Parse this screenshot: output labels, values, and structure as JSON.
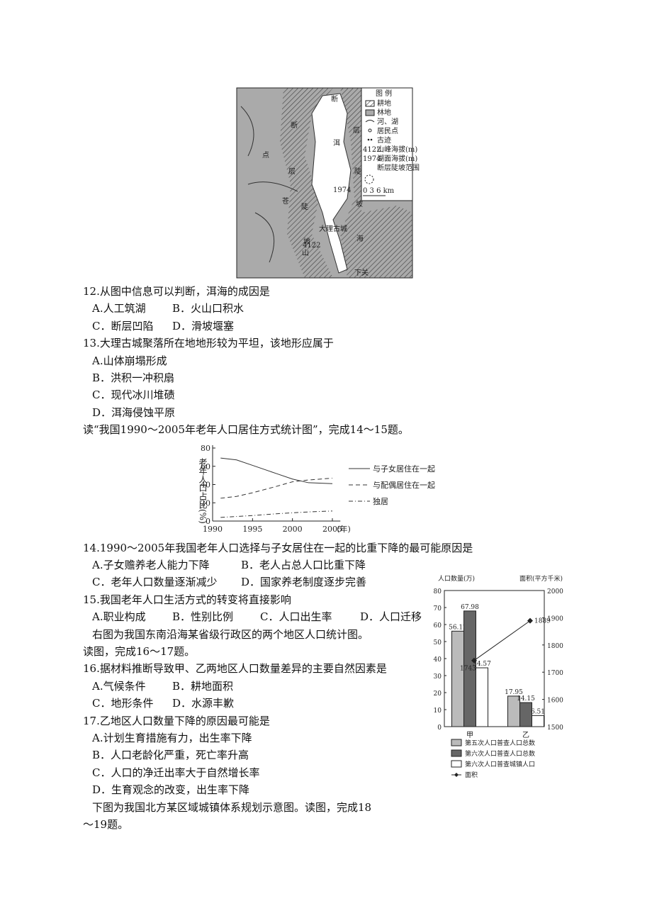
{
  "map": {
    "legend_title": "图  例",
    "legend": [
      "耕地",
      "林地",
      "河、湖",
      "居民点",
      "古迹",
      "山峰海拔(m)",
      "湖面海拔(m)",
      "断层陡坡范围"
    ],
    "peak_code": "4122",
    "lake_code": "1974",
    "scale": "0  3  6 km",
    "labels": {
      "left_fault": [
        "断",
        "层",
        "陡",
        "坡"
      ],
      "right_fault": [
        "断",
        "层",
        "陡",
        "坡"
      ],
      "mountain": [
        "点",
        "苍",
        "山"
      ],
      "lake": [
        "洱",
        "海"
      ],
      "city": "大理古城",
      "peak": "4122",
      "lake_level": "1974",
      "town": "下关"
    }
  },
  "questions": [
    {
      "stem": "12.从图中信息可以判断，洱海的成因是",
      "options": [
        [
          "A.人工筑湖",
          "B．火山口积水"
        ],
        [
          "C．断层凹陷",
          "D．滑坡堰塞"
        ]
      ]
    },
    {
      "stem": "13.大理古城聚落所在地地形较为平坦，该地形应属于",
      "options": [
        [
          "A.山体崩塌形成"
        ],
        [
          "B．洪积一冲积扇"
        ],
        [
          "C．现代冰川堆碛"
        ],
        [
          "D．洱海侵蚀平原"
        ]
      ]
    },
    {
      "intro": [
        "读“我国1990～2005年老年人口居住方式统计图”，完成14～15题。"
      ]
    },
    {
      "stem": "14.1990～2005年我国老年人口选择与子女居住在一起的比重下降的最可能原因是",
      "options": [
        [
          "A.子女赡养老人能力下降",
          "B．老人占总人口比重下降"
        ],
        [
          "C．老年人口数量逐渐减少",
          "D．国家养老制度逐步完善"
        ]
      ]
    },
    {
      "stem": "15.我国老年人口生活方式的转变将直接影响",
      "options": [
        [
          "A.职业构成",
          "B．性别比例",
          "C．人口出生率",
          "D．人口迁移"
        ]
      ]
    },
    {
      "intro": [
        "右图为我国东南沿海某省级行政区的两个地区人口统计图。",
        "读图，完成16～17题。"
      ]
    },
    {
      "stem": "16.据材料推断导致甲、乙两地区人口数量差异的主要自然因素是",
      "options": [
        [
          "A.气候条件",
          "B．耕地面积"
        ],
        [
          "C．地形条件",
          "D．水源丰歉"
        ]
      ]
    },
    {
      "stem": "17.乙地区人口数量下降的原因最可能是",
      "options": [
        [
          "A.计划生育措施有力，出生率下降"
        ],
        [
          "B．人口老龄化严重，死亡率升高"
        ],
        [
          "C．人口的净迁出率大于自然增长率"
        ],
        [
          "D．生育观念的改变，出生率下降"
        ]
      ]
    },
    {
      "intro": [
        "下图为我国北方某区域城镇体系规划示意图。读图，完成18",
        "～19题。"
      ]
    }
  ],
  "chart_data": [
    {
      "type": "line",
      "y_label": "老年人口占比(%)",
      "x_unit": "(年)",
      "x": [
        1991,
        1993,
        1995,
        1998,
        2000,
        2002,
        2005
      ],
      "xlim": [
        1990,
        2006
      ],
      "xticks": [
        1990,
        1995,
        2000,
        2005
      ],
      "ylim": [
        0,
        80
      ],
      "yticks": [
        0,
        20,
        40,
        60,
        80
      ],
      "series": [
        {
          "name": "与子女居住在一起",
          "color": "#333",
          "dash": "solid",
          "values": [
            69,
            67,
            61,
            52,
            46,
            42,
            41
          ]
        },
        {
          "name": "与配偶居住在一起",
          "color": "#333",
          "dash": "dashed",
          "values": [
            25,
            27,
            31,
            38,
            43,
            45,
            47
          ]
        },
        {
          "name": "独居",
          "color": "#333",
          "dash": "dashdot",
          "values": [
            4,
            5,
            6,
            8,
            9,
            10,
            11
          ]
        }
      ]
    },
    {
      "type": "bar",
      "y_label": "人口数量(万)",
      "y2_label": "面积(平方千米)",
      "categories": [
        "甲",
        "乙"
      ],
      "ylim": [
        0,
        80
      ],
      "yticks": [
        0,
        10,
        20,
        30,
        40,
        50,
        60,
        70,
        80
      ],
      "y2lim": [
        1500,
        2000
      ],
      "y2ticks": [
        1500,
        1600,
        1700,
        1800,
        1900,
        2000
      ],
      "series": [
        {
          "name": "第五次人口普查人口总数",
          "color": "#bbb",
          "values": [
            56.12,
            17.95
          ]
        },
        {
          "name": "第六次人口普查人口总数",
          "color": "#666",
          "values": [
            67.98,
            14.15
          ]
        },
        {
          "name": "第六次人口普查城镇人口",
          "color": "#fff",
          "values": [
            34.57,
            6.51
          ]
        },
        {
          "name": "面积",
          "color": "#222",
          "axis": "y2",
          "kind": "line",
          "values": [
            1743,
            1889
          ]
        }
      ]
    }
  ]
}
